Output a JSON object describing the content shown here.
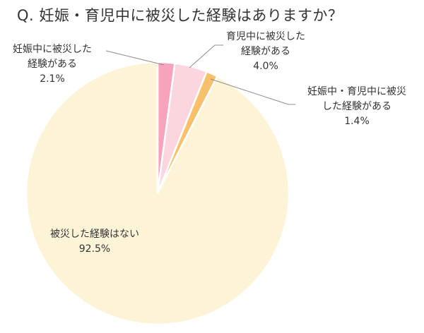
{
  "chart_data": {
    "type": "pie",
    "title": "Q.  妊娠・育児中に被災した経験はありますか？",
    "slices": [
      {
        "name": "妊娠中に被災した経験がある",
        "value": 2.1,
        "color": "#f7a3bb"
      },
      {
        "name": "育児中に被災した経験がある",
        "value": 4.0,
        "color": "#fcd6de"
      },
      {
        "name": "妊娠中・育児中に被災した経験がある",
        "value": 1.4,
        "color": "#f8c06a"
      },
      {
        "name": "被災した経験はない",
        "value": 92.5,
        "color": "#fdf4d8"
      }
    ],
    "start_angle_deg": 0,
    "direction": "clockwise",
    "legend": "none"
  },
  "labels": {
    "pregnancy": {
      "line1": "妊娠中に被災した",
      "line2": "経験がある",
      "pct": "2.1%"
    },
    "childcare": {
      "line1": "育児中に被災した",
      "line2": "経験がある",
      "pct": "4.0%"
    },
    "both": {
      "line1": "妊娠中・育児中に被災",
      "line2": "した経験がある",
      "pct": "1.4%"
    },
    "none": {
      "line1": "被災した経験はない",
      "pct": "92.5%"
    }
  }
}
